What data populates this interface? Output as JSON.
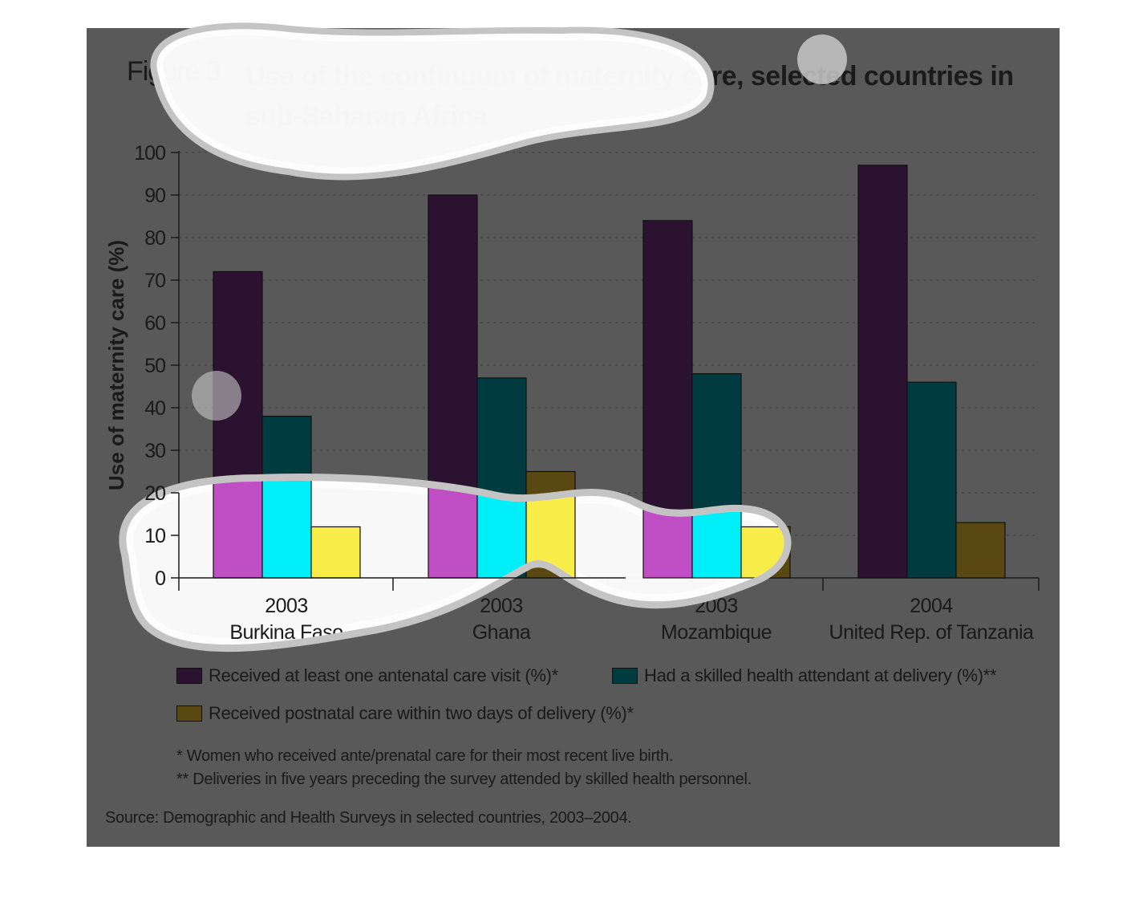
{
  "colors": {
    "panel_bg": "#595959",
    "antenatal": "#2a1230",
    "skilled": "#003b40",
    "postnatal": "#5a4812",
    "antenatal_highlight": "#c04ec4",
    "skilled_highlight": "#00eef8",
    "postnatal_highlight": "#f8ec48"
  },
  "figure": {
    "label": "Figure 3",
    "title": "Use of the continuum of maternity care, selected countries in sub-Saharan Africa"
  },
  "chart_data": {
    "type": "bar",
    "title": "Use of the continuum of maternity care, selected countries in sub-Saharan Africa",
    "ylabel": "Use of maternity care (%)",
    "xlabel": "",
    "ylim": [
      0,
      100
    ],
    "yticks": [
      0,
      10,
      20,
      30,
      40,
      50,
      60,
      70,
      80,
      90,
      100
    ],
    "grid": "horizontal dashed",
    "legend_position": "bottom",
    "categories": [
      {
        "year": "2003",
        "country": "Burkina Faso"
      },
      {
        "year": "2003",
        "country": "Ghana"
      },
      {
        "year": "2003",
        "country": "Mozambique"
      },
      {
        "year": "2004",
        "country": "United Rep. of Tanzania"
      }
    ],
    "series": [
      {
        "name": "Received at least one antenatal care visit (%)*",
        "color_key": "antenatal",
        "values": [
          72,
          90,
          84,
          97
        ]
      },
      {
        "name": "Had a skilled health attendant at delivery (%)**",
        "color_key": "skilled",
        "values": [
          38,
          47,
          48,
          46
        ]
      },
      {
        "name": "Received postnatal care within two days of delivery (%)*",
        "color_key": "postnatal",
        "values": [
          12,
          25,
          12,
          13
        ]
      }
    ]
  },
  "notes": [
    "* Women who received ante/prenatal care for their most recent live birth.",
    "** Deliveries in five years preceding the survey attended by skilled health personnel."
  ],
  "source": "Source: Demographic and Health Surveys in selected countries, 2003–2004."
}
